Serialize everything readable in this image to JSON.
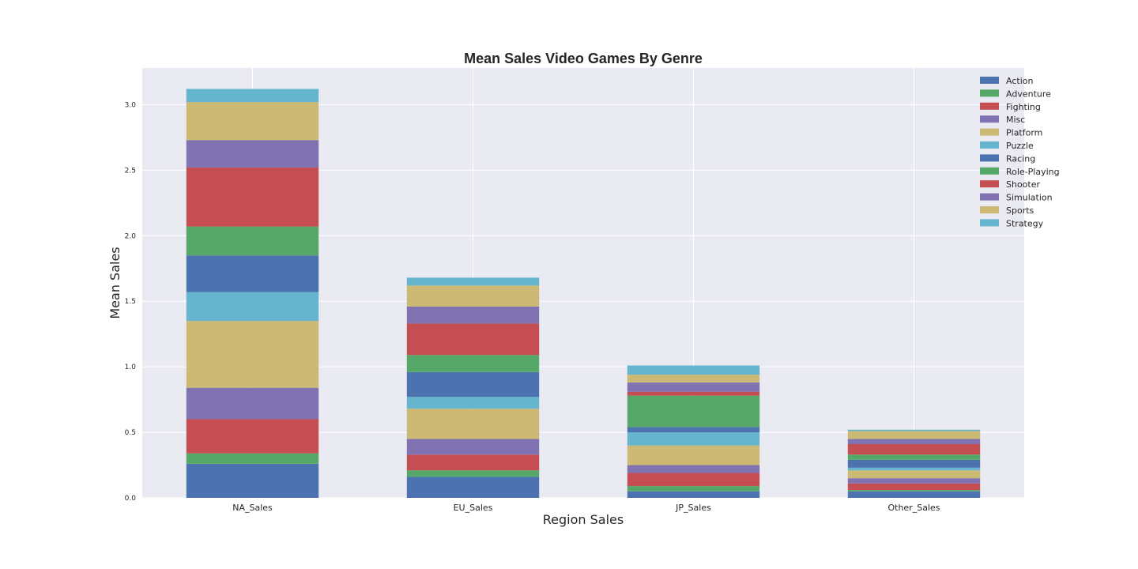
{
  "chart_data": {
    "type": "bar",
    "stacked": true,
    "title": "Mean Sales Video Games By Genre",
    "xlabel": "Region Sales",
    "ylabel": "Mean Sales",
    "categories": [
      "NA_Sales",
      "EU_Sales",
      "JP_Sales",
      "Other_Sales"
    ],
    "ylim": [
      0,
      3.28
    ],
    "yticks": [
      "0.0",
      "0.5",
      "1.0",
      "1.5",
      "2.0",
      "2.5",
      "3.0"
    ],
    "grid": true,
    "legend_position": "top-right",
    "series": [
      {
        "name": "Action",
        "color": "#4c72b0",
        "values": [
          0.26,
          0.16,
          0.05,
          0.05
        ]
      },
      {
        "name": "Adventure",
        "color": "#55a868",
        "values": [
          0.08,
          0.05,
          0.04,
          0.01
        ]
      },
      {
        "name": "Fighting",
        "color": "#c44e52",
        "values": [
          0.26,
          0.12,
          0.1,
          0.05
        ]
      },
      {
        "name": "Misc",
        "color": "#8172b2",
        "values": [
          0.24,
          0.12,
          0.06,
          0.04
        ]
      },
      {
        "name": "Platform",
        "color": "#ccb974",
        "values": [
          0.51,
          0.23,
          0.15,
          0.06
        ]
      },
      {
        "name": "Puzzle",
        "color": "#64b5cd",
        "values": [
          0.22,
          0.09,
          0.1,
          0.02
        ]
      },
      {
        "name": "Racing",
        "color": "#4c72b0",
        "values": [
          0.28,
          0.19,
          0.04,
          0.06
        ]
      },
      {
        "name": "Role-Playing",
        "color": "#55a868",
        "values": [
          0.22,
          0.13,
          0.24,
          0.04
        ]
      },
      {
        "name": "Shooter",
        "color": "#c44e52",
        "values": [
          0.45,
          0.24,
          0.03,
          0.08
        ]
      },
      {
        "name": "Simulation",
        "color": "#8172b2",
        "values": [
          0.21,
          0.13,
          0.07,
          0.04
        ]
      },
      {
        "name": "Sports",
        "color": "#ccb974",
        "values": [
          0.29,
          0.16,
          0.06,
          0.06
        ]
      },
      {
        "name": "Strategy",
        "color": "#64b5cd",
        "values": [
          0.1,
          0.06,
          0.07,
          0.01
        ]
      }
    ]
  }
}
